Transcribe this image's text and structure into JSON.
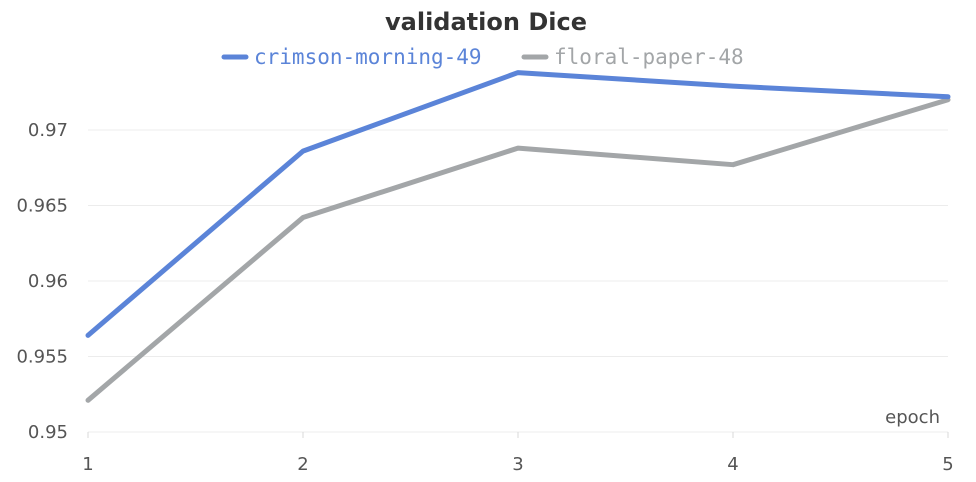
{
  "chart_data": {
    "type": "line",
    "title": "validation Dice",
    "xlabel": "epoch",
    "ylabel": "",
    "x": [
      1,
      2,
      3,
      4,
      5
    ],
    "xlim": [
      1,
      5
    ],
    "ylim": [
      0.95,
      0.9745
    ],
    "y_ticks": [
      0.95,
      0.955,
      0.96,
      0.965,
      0.97
    ],
    "y_tick_labels": [
      "0.95",
      "0.955",
      "0.96",
      "0.965",
      "0.97"
    ],
    "x_ticks": [
      1,
      2,
      3,
      4,
      5
    ],
    "x_tick_labels": [
      "1",
      "2",
      "3",
      "4",
      "5"
    ],
    "grid": true,
    "legend_position": "top-center",
    "series": [
      {
        "name": "crimson-morning-49",
        "color": "#5b84d8",
        "values": [
          0.9564,
          0.9686,
          0.9738,
          0.9729,
          0.9722
        ]
      },
      {
        "name": "floral-paper-48",
        "color": "#a3a6a8",
        "values": [
          0.9521,
          0.9642,
          0.9688,
          0.9677,
          0.972
        ]
      }
    ]
  }
}
